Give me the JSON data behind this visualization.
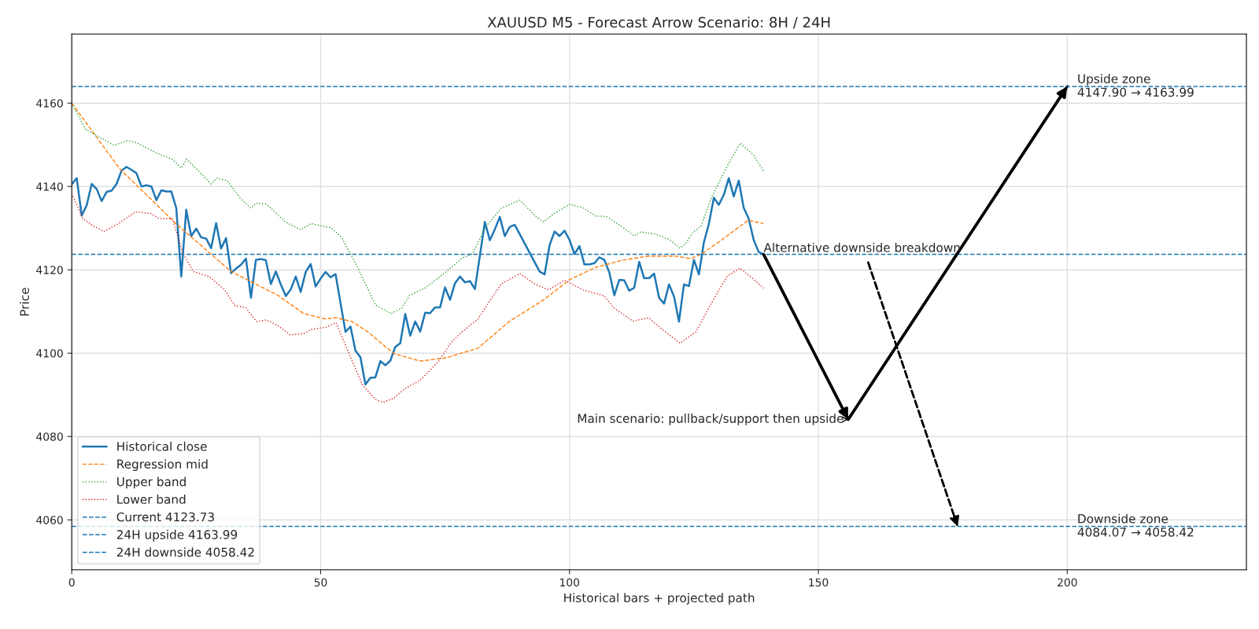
{
  "chart_data": {
    "type": "line",
    "title": "XAUUSD M5 - Forecast Arrow Scenario: 8H / 24H",
    "xlabel": "Historical bars + projected path",
    "ylabel": "Price",
    "xlim": [
      0,
      236
    ],
    "ylim": [
      4048,
      4176.6
    ],
    "xticks": [
      0,
      50,
      100,
      150,
      200
    ],
    "yticks": [
      4060,
      4080,
      4100,
      4120,
      4140,
      4160
    ],
    "grid": true,
    "legend": "bottom left",
    "series": [
      {
        "name": "Historical close",
        "color": "#1f77b4",
        "line_style": "solid",
        "x": [
          0,
          1,
          2,
          3,
          4,
          5,
          6,
          7,
          8,
          9,
          10,
          11,
          12,
          13,
          14,
          15,
          16,
          17,
          18,
          19,
          20,
          21,
          22,
          23,
          24,
          25,
          26,
          27,
          28,
          29,
          30,
          31,
          32,
          33,
          34,
          35,
          36,
          37,
          38,
          39,
          40,
          41,
          42,
          43,
          44,
          45,
          46,
          47,
          48,
          49,
          50,
          51,
          52,
          53,
          54,
          55,
          56,
          57,
          58,
          59,
          60,
          61,
          62,
          63,
          64,
          65,
          66,
          67,
          68,
          69,
          70,
          71,
          72,
          73,
          74,
          75,
          76,
          77,
          78,
          79,
          80,
          81,
          82,
          83,
          84,
          85,
          86,
          87,
          88,
          89,
          94,
          95,
          96,
          97,
          98,
          99,
          100,
          101,
          102,
          103,
          104,
          105,
          106,
          107,
          108,
          109,
          110,
          111,
          112,
          113,
          114,
          115,
          116,
          117,
          118,
          119,
          120,
          121,
          122,
          123,
          124,
          125,
          126,
          127,
          128,
          129,
          130,
          131,
          132,
          133,
          134,
          135,
          136,
          137,
          138,
          139
        ],
        "values": [
          4140.5,
          4142,
          4133,
          4135.5,
          4140.6,
          4139.4,
          4136.5,
          4138.7,
          4139,
          4140.6,
          4143.8,
          4144.7,
          4144,
          4143.2,
          4140,
          4140.3,
          4140,
          4136.7,
          4139.1,
          4138.8,
          4138.8,
          4134.8,
          4118.4,
          4134.4,
          4128.1,
          4129.9,
          4127.8,
          4127.5,
          4125.2,
          4131.2,
          4125.1,
          4127.6,
          4119.2,
          4120.3,
          4121.2,
          4122.7,
          4113.3,
          4122.4,
          4122.6,
          4122.3,
          4116.6,
          4119.6,
          4116.5,
          4113.7,
          4115.3,
          4118.4,
          4114.7,
          4119.5,
          4121.4,
          4116,
          4117.9,
          4119.5,
          4118.2,
          4119,
          4112,
          4105.1,
          4106.4,
          4100.6,
          4099,
          4092.5,
          4094.1,
          4094.2,
          4098.1,
          4097.1,
          4098.2,
          4101.5,
          4102.4,
          4109.4,
          4104.2,
          4107.6,
          4105.2,
          4109.7,
          4109.6,
          4111,
          4111,
          4115.8,
          4112.8,
          4116.8,
          4118.4,
          4117,
          4117.3,
          4115.4,
          4123.4,
          4131.5,
          4127.1,
          4129.7,
          4132.7,
          4128.1,
          4130.3,
          4130.8,
          4119.6,
          4118.9,
          4125.9,
          4129.2,
          4128.1,
          4129.4,
          4127.2,
          4123.8,
          4125.7,
          4121.3,
          4121.3,
          4121.6,
          4123,
          4122.4,
          4119.4,
          4113.9,
          4117.6,
          4117.5,
          4115,
          4115.7,
          4121.9,
          4118,
          4118,
          4119.1,
          4113.3,
          4111.9,
          4116.5,
          4113.6,
          4107.6,
          4116.5,
          4116.1,
          4122.4,
          4118.9,
          4126.6,
          4131,
          4137.3,
          4135.6,
          4138,
          4142,
          4137.6,
          4141.4,
          4134.9,
          4132.3,
          4127.2,
          4124.3,
          4123.7
        ]
      },
      {
        "name": "Regression mid",
        "color": "#ff7f0e",
        "line_style": "dashed",
        "x": [
          0,
          9.6,
          21,
          32,
          41.4,
          46.6,
          51,
          53.1,
          56.3,
          59.5,
          64.7,
          70,
          75.3,
          81.6,
          87.9,
          94.8,
          100.1,
          105.3,
          110.6,
          115.9,
          121.2,
          124.3,
          126.4,
          130.6,
          135.9,
          139
        ],
        "values": [
          4160,
          4144.3,
          4131,
          4119.6,
          4113.9,
          4109.5,
          4108.2,
          4108.5,
          4107.6,
          4105.1,
          4099.9,
          4098.1,
          4098.9,
          4101.2,
          4107.6,
          4112.8,
          4117.7,
          4120.6,
          4122.3,
          4123.3,
          4123.3,
          4122.7,
          4123.7,
          4127.2,
          4131.9,
          4131.1
        ]
      },
      {
        "name": "Upper band",
        "color": "#2ca02c",
        "line_style": "dotted",
        "x": [
          0,
          2.7,
          8.5,
          11.2,
          12.8,
          17,
          20.2,
          22,
          23.1,
          28,
          29.1,
          31.2,
          33.9,
          36,
          37,
          39.1,
          42.8,
          46,
          48.1,
          51,
          52.1,
          54.2,
          57.3,
          61,
          64.2,
          66.3,
          67.9,
          71.1,
          75.3,
          78.4,
          80.5,
          83.2,
          86.3,
          90,
          93.2,
          94.8,
          96.9,
          100,
          102.7,
          105.3,
          107.4,
          110.6,
          113,
          114.3,
          117.5,
          120.1,
          122.2,
          123.3,
          124.9,
          126.4,
          128.5,
          131.7,
          134.3,
          137,
          139
        ],
        "values": [
          4160,
          4153.8,
          4149.9,
          4151,
          4150.6,
          4148.1,
          4146.5,
          4144.4,
          4146.6,
          4140.6,
          4142,
          4141.4,
          4137.1,
          4134.8,
          4136,
          4135.8,
          4131.6,
          4129.6,
          4131.1,
          4130.3,
          4130.1,
          4127.8,
          4120.9,
          4111.6,
          4109.5,
          4110.8,
          4113.9,
          4115.7,
          4119.6,
          4122.8,
          4123.8,
          4130.4,
          4134.8,
          4136.7,
          4132.9,
          4131.5,
          4133.5,
          4135.7,
          4134.9,
          4132.9,
          4132.8,
          4130.3,
          4128.1,
          4129.1,
          4128.5,
          4127.2,
          4125.2,
          4126.3,
          4129.1,
          4130.4,
          4137.3,
          4144.9,
          4150.4,
          4147.5,
          4143.7
        ]
      },
      {
        "name": "Lower band",
        "color": "#d62728",
        "line_style": "dotted",
        "x": [
          0,
          2.2,
          4.3,
          6.4,
          9.1,
          12.8,
          16,
          17.5,
          20.2,
          22.3,
          24.4,
          27.6,
          30.7,
          32.8,
          35,
          37.1,
          39.1,
          41.3,
          43.9,
          46.6,
          48.1,
          51,
          53.1,
          55.2,
          58.4,
          61,
          62.6,
          64.7,
          66.8,
          70,
          73.7,
          76.3,
          78.4,
          81.6,
          83.7,
          86.3,
          90,
          93.2,
          95.8,
          99,
          102.7,
          106.9,
          109,
          112.7,
          115.9,
          118.5,
          122.2,
          125.4,
          128.5,
          131.7,
          134.3,
          137,
          139
        ],
        "values": [
          4138.3,
          4132.3,
          4130.6,
          4129.2,
          4130.9,
          4133.9,
          4133.5,
          4132.3,
          4132.3,
          4124.1,
          4119.6,
          4118.4,
          4115.2,
          4111.4,
          4110.9,
          4107.6,
          4108,
          4106.7,
          4104.4,
          4104.7,
          4105.7,
          4106.2,
          4107.3,
          4101.3,
          4092.4,
          4088.9,
          4088.2,
          4089.2,
          4091.4,
          4093.5,
          4098.1,
          4102.7,
          4105.1,
          4108.2,
          4112,
          4116.6,
          4119.1,
          4116.5,
          4115.2,
          4117.5,
          4115.2,
          4113.8,
          4110.8,
          4107.7,
          4108.5,
          4105.8,
          4102.4,
          4105.1,
          4112,
          4118.5,
          4120.4,
          4117.7,
          4115.6
        ]
      },
      {
        "color": "#000000",
        "line_style": "solid",
        "x": [
          139,
          156,
          200
        ],
        "values": [
          4123.7,
          4084.1,
          4164.0
        ]
      },
      {
        "color": "#000000",
        "line_style": "dashed",
        "x": [
          160,
          178
        ],
        "values": [
          4121.8,
          4058.4
        ]
      }
    ],
    "ref_lines": [
      {
        "axis": "y",
        "value": 4123.73,
        "label": "Current 4123.73",
        "color": "#1f77b4",
        "line_style": "dashed"
      },
      {
        "axis": "y",
        "value": 4163.99,
        "label": "24H upside 4163.99",
        "color": "#1f77b4",
        "line_style": "dashed"
      },
      {
        "axis": "y",
        "value": 4058.42,
        "label": "24H downside 4058.42",
        "color": "#1f77b4",
        "line_style": "dashed"
      }
    ],
    "annotations": [
      {
        "text": "Main scenario: pullback/support then upside",
        "x": 156,
        "y": 4084.1
      },
      {
        "text": "Alternative downside breakdown",
        "x": 139,
        "y": 4123.7
      },
      {
        "text": "Upside zone\n4147.90 → 4163.99",
        "x": 202,
        "y": 4163.99
      },
      {
        "text": "Downside zone\n4084.07 → 4058.42",
        "x": 202,
        "y": 4058.42
      }
    ]
  }
}
